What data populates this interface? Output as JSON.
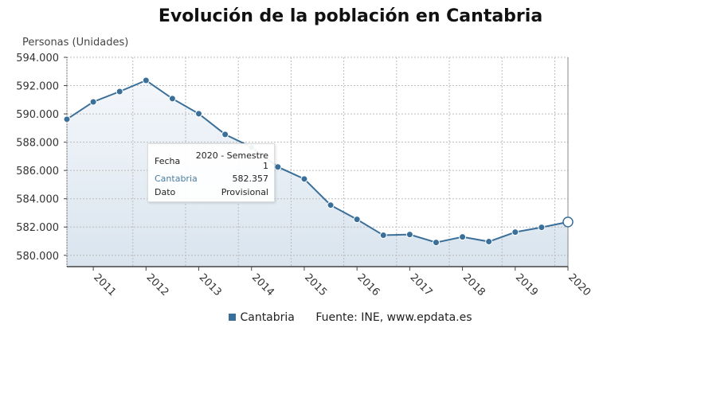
{
  "chart_data": {
    "type": "area",
    "title": "Evolución de la población en Cantabria",
    "ylabel": "Personas (Unidades)",
    "xlabel": "",
    "x_tick_labels": [
      "2011",
      "2012",
      "2013",
      "2014",
      "2015",
      "2016",
      "2017",
      "2018",
      "2019",
      "2020"
    ],
    "y_tick_labels": [
      "580.000",
      "582.000",
      "584.000",
      "586.000",
      "588.000",
      "590.000",
      "592.000",
      "594.000"
    ],
    "y_ticks": [
      580000,
      582000,
      584000,
      586000,
      588000,
      590000,
      592000,
      594000
    ],
    "ylim": [
      579200,
      594000
    ],
    "grid": true,
    "legend_position": "bottom",
    "series": [
      {
        "name": "Cantabria",
        "color": "#3a6f9a",
        "values": [
          589620,
          590850,
          591580,
          592370,
          591080,
          590010,
          588550,
          587650,
          586250,
          585400,
          583550,
          582540,
          581420,
          581470,
          580910,
          581300,
          580970,
          581640,
          581980,
          582357
        ]
      }
    ],
    "tooltip": {
      "fecha_label": "Fecha",
      "fecha_value": "2020 - Semestre 1",
      "series_label": "Cantabria",
      "series_value": "582.357",
      "dato_label": "Dato",
      "dato_value": "Provisional"
    },
    "source": "Fuente: INE, www.epdata.es"
  }
}
